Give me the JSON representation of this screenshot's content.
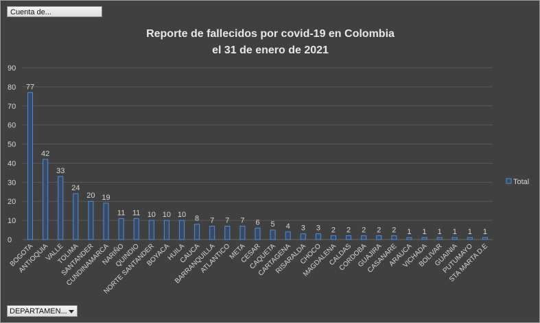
{
  "controls": {
    "value_field_label": "Cuenta de...",
    "axis_field_label": "DEPARTAMEN..."
  },
  "chart_data": {
    "type": "bar",
    "title": "Reporte de fallecidos por covid-19 en Colombia",
    "subtitle": "el 31 de enero de 2021",
    "xlabel": "",
    "ylabel": "",
    "ylim": [
      0,
      90
    ],
    "yticks": [
      0,
      10,
      20,
      30,
      40,
      50,
      60,
      70,
      80,
      90
    ],
    "grid": true,
    "legend_position": "right",
    "series": [
      {
        "name": "Total",
        "values": [
          77,
          42,
          33,
          24,
          20,
          19,
          11,
          11,
          10,
          10,
          10,
          8,
          7,
          7,
          7,
          6,
          5,
          4,
          3,
          3,
          2,
          2,
          2,
          2,
          2,
          1,
          1,
          1,
          1,
          1,
          1
        ]
      }
    ],
    "categories": [
      "BOGOTA",
      "ANTIOQUIA",
      "VALLE",
      "TOLIMA",
      "SANTANDER",
      "CUNDINAMARCA",
      "NARIÑO",
      "QUINDIO",
      "NORTE SANTANDER",
      "BOYACA",
      "HUILA",
      "CAUCA",
      "BARRANQUILLA",
      "ATLANTICO",
      "META",
      "CESAR",
      "CAQUETA",
      "CARTAGENA",
      "RISARALDA",
      "CHOCO",
      "MAGDALENA",
      "CALDAS",
      "CORDOBA",
      "GUAJIRA",
      "CASANARE",
      "ARAUCA",
      "VICHADA",
      "BOLIVAR",
      "GUAINIA",
      "PUTUMAYO",
      "STA MARTA D.E"
    ]
  },
  "colors": {
    "background": "#404040",
    "gridline": "#5a5a5a",
    "bar_fill": "#364a66",
    "bar_stroke": "#4f8ee0",
    "text": "#d8d8d8"
  }
}
